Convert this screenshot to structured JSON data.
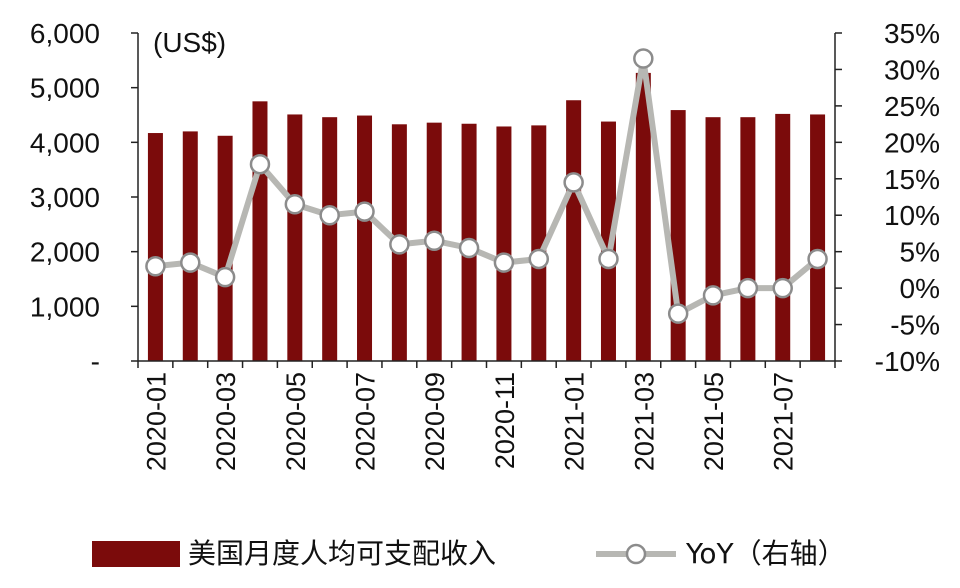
{
  "chart_data": {
    "type": "bar",
    "title": "",
    "unit_label": "(US$)",
    "xlabel": "",
    "ylabel": "",
    "categories": [
      "2020-01",
      "2020-02",
      "2020-03",
      "2020-04",
      "2020-05",
      "2020-06",
      "2020-07",
      "2020-08",
      "2020-09",
      "2020-10",
      "2020-11",
      "2020-12",
      "2021-01",
      "2021-02",
      "2021-03",
      "2021-04",
      "2021-05",
      "2021-06",
      "2021-07",
      "2021-08"
    ],
    "x_tick_labels": [
      "2020-01",
      "2020-03",
      "2020-05",
      "2020-07",
      "2020-09",
      "2020-11",
      "2021-01",
      "2021-03",
      "2021-05",
      "2021-07"
    ],
    "ylim": [
      0,
      6000
    ],
    "y_ticks": [
      "-",
      "1,000",
      "2,000",
      "3,000",
      "4,000",
      "5,000",
      "6,000"
    ],
    "y2lim": [
      -10,
      35
    ],
    "y2_ticks": [
      "-10%",
      "-5%",
      "0%",
      "5%",
      "10%",
      "15%",
      "20%",
      "25%",
      "30%",
      "35%"
    ],
    "grid": false,
    "legend_position": "bottom",
    "series": [
      {
        "name": "美国月度人均可支配收入",
        "kind": "bar",
        "axis": "left",
        "color": "#7b0b0b",
        "values": [
          4170,
          4200,
          4120,
          4750,
          4510,
          4460,
          4490,
          4330,
          4360,
          4340,
          4290,
          4310,
          4770,
          4380,
          5270,
          4590,
          4460,
          4460,
          4520,
          4510
        ]
      },
      {
        "name": "YoY（右轴）",
        "kind": "line",
        "axis": "right",
        "color": "#b7b7b3",
        "marker_fill": "#ffffff",
        "marker_edge": "#8c8c8c",
        "values": [
          3.0,
          3.5,
          1.5,
          17.0,
          11.5,
          10.0,
          10.5,
          6.0,
          6.5,
          5.5,
          3.5,
          4.0,
          14.5,
          4.0,
          31.5,
          -3.5,
          -1.0,
          0.0,
          0.0,
          4.0
        ]
      }
    ]
  }
}
